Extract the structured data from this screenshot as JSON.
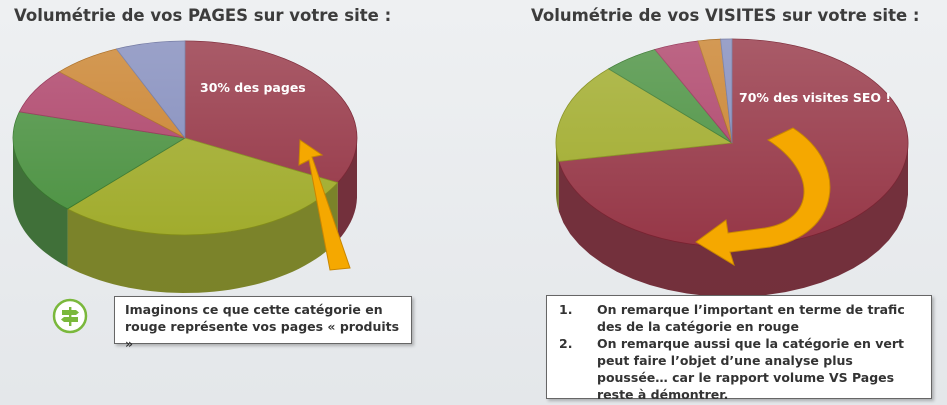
{
  "chart_data": [
    {
      "type": "pie",
      "title": "Volumétrie de vos PAGES sur votre site :",
      "annotation": "30% des pages",
      "slices": [
        {
          "value": 30,
          "color": "#8e2738"
        },
        {
          "value": 27,
          "color": "#9aa61c"
        },
        {
          "value": 16,
          "color": "#3e8a33"
        },
        {
          "value": 7,
          "color": "#a8355e"
        },
        {
          "value": 6,
          "color": "#c77a1e"
        },
        {
          "value": 6,
          "color": "#7b84b8"
        }
      ]
    },
    {
      "type": "pie",
      "title": "Volumétrie de vos VISITES sur votre site :",
      "annotation": "70% des visites SEO !",
      "slices": [
        {
          "value": 70,
          "color": "#8e2738"
        },
        {
          "value": 15,
          "color": "#9aa61c"
        },
        {
          "value": 5,
          "color": "#3e8a33"
        },
        {
          "value": 4,
          "color": "#a8355e"
        },
        {
          "value": 2,
          "color": "#c77a1e"
        },
        {
          "value": 1,
          "color": "#7b84b8"
        }
      ]
    }
  ],
  "notes": {
    "left_box": [
      "Imaginons ce que cette catégorie en",
      "rouge représente vos pages « produits »"
    ],
    "right_box": [
      {
        "number": "1.",
        "text": "On remarque l’important en terme de trafic des de la catégorie en rouge"
      },
      {
        "number": "2.",
        "text": "On remarque aussi que la catégorie en vert peut faire l’objet d’une analyse plus poussée… car le rapport volume VS Pages reste à démontrer."
      }
    ]
  },
  "colors": {
    "arrow": "#f5a800",
    "tip_icon": "#7ab83c"
  },
  "icons": {
    "tip": "signpost-icon"
  }
}
